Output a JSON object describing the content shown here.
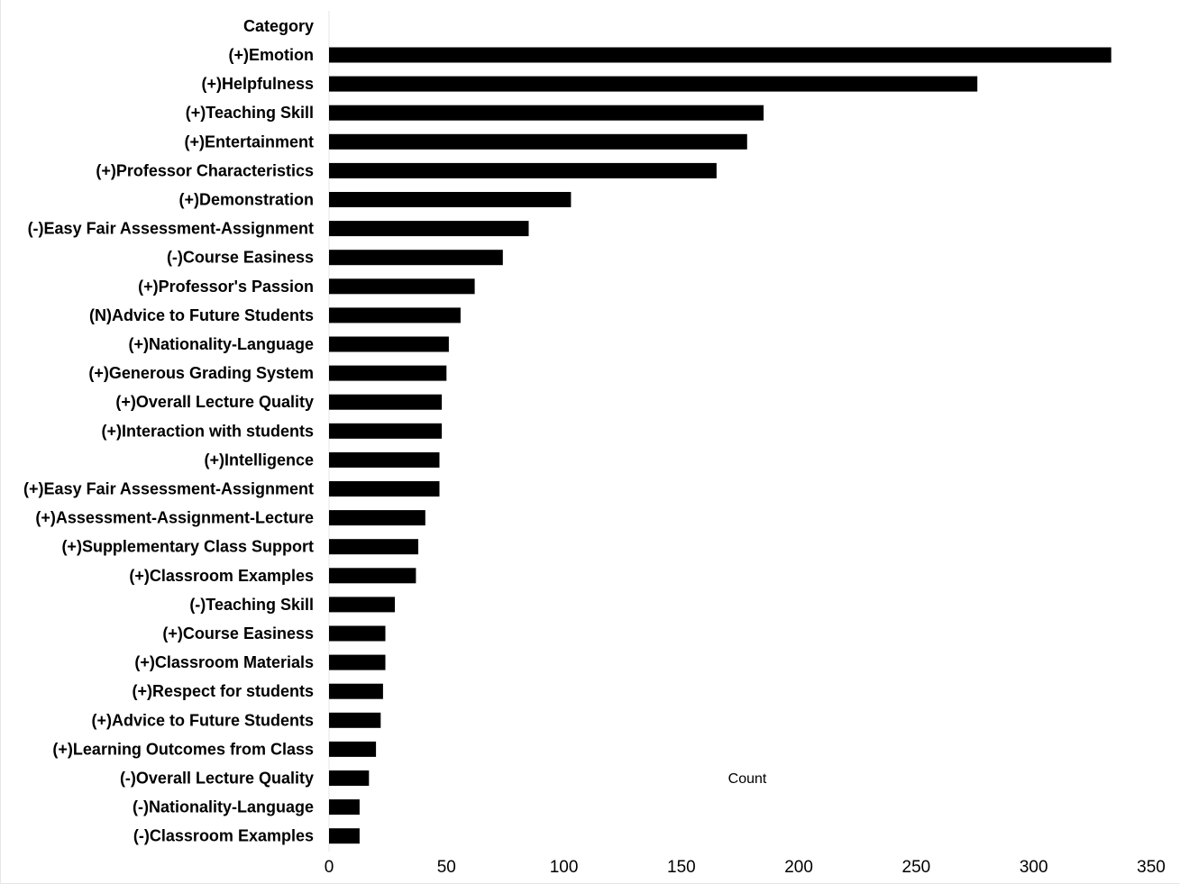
{
  "chart_data": {
    "type": "bar",
    "orientation": "horizontal",
    "category_header": "Category",
    "xlabel": "Count",
    "xlim": [
      0,
      350
    ],
    "xticks": [
      0,
      50,
      100,
      150,
      200,
      250,
      300,
      350
    ],
    "grid": false,
    "bar_color": "#000000",
    "categories": [
      "(+)Emotion",
      "(+)Helpfulness",
      "(+)Teaching Skill",
      "(+)Entertainment",
      "(+)Professor Characteristics",
      "(+)Demonstration",
      "(-)Easy Fair Assessment-Assignment",
      "(-)Course Easiness",
      "(+)Professor's Passion",
      "(N)Advice to Future Students",
      "(+)Nationality-Language",
      "(+)Generous Grading System",
      "(+)Overall Lecture Quality",
      "(+)Interaction with students",
      "(+)Intelligence",
      "(+)Easy Fair Assessment-Assignment",
      "(+)Assessment-Assignment-Lecture",
      "(+)Supplementary Class Support",
      "(+)Classroom Examples",
      "(-)Teaching Skill",
      "(+)Course Easiness",
      "(+)Classroom Materials",
      "(+)Respect for students",
      "(+)Advice to Future Students",
      "(+)Learning Outcomes from Class",
      "(-)Overall Lecture Quality",
      "(-)Nationality-Language",
      "(-)Classroom Examples"
    ],
    "values": [
      333,
      276,
      185,
      178,
      165,
      103,
      85,
      74,
      62,
      56,
      51,
      50,
      48,
      48,
      47,
      47,
      41,
      38,
      37,
      28,
      24,
      24,
      23,
      22,
      20,
      17,
      13,
      13
    ]
  }
}
